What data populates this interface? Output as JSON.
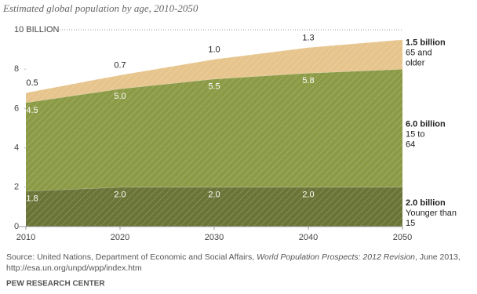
{
  "chart_data": {
    "type": "stacked_area",
    "title": "Estimated global population by age, 2010-2050",
    "x": [
      2010,
      2020,
      2030,
      2040,
      2050
    ],
    "xlim": [
      2010,
      2050
    ],
    "xticks": [
      2010,
      2020,
      2030,
      2040,
      2050
    ],
    "ylim": [
      0,
      10
    ],
    "yticks": [
      0,
      2,
      4,
      6,
      8,
      {
        "value": 10,
        "label": "10 BILLION"
      }
    ],
    "series": [
      {
        "name": "Younger than 15",
        "color": "#6b7437",
        "values": [
          1.8,
          2.0,
          2.0,
          2.0,
          2.0
        ],
        "value_labels": [
          "1.8",
          "2.0",
          "2.0",
          "2.0",
          "2.0 billion"
        ]
      },
      {
        "name": "15 to 64",
        "color": "#8b9a45",
        "values": [
          4.5,
          5.0,
          5.5,
          5.8,
          6.0
        ],
        "value_labels": [
          "4.5",
          "5.0",
          "5.5",
          "5.8",
          "6.0 billion"
        ]
      },
      {
        "name": "65 and older",
        "color": "#e6c48c",
        "values": [
          0.5,
          0.7,
          1.0,
          1.3,
          1.5
        ],
        "value_labels": [
          "0.5",
          "0.7",
          "1.0",
          "1.3",
          "1.5 billion"
        ]
      }
    ],
    "source": [
      "Source: United Nations, Department of Economic and Social Affairs, ",
      "World Population Prospects: 2012 Revision",
      ", June 2013,",
      "http://esa.un.org/unpd/wpp/index.htm"
    ],
    "credit": "PEW RESEARCH CENTER"
  }
}
